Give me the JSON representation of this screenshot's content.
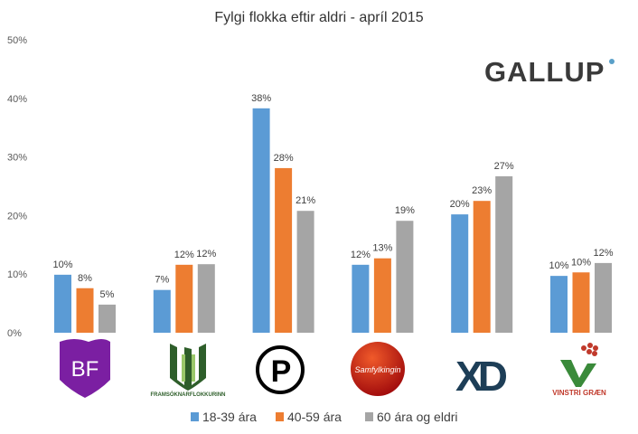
{
  "chart_data": {
    "type": "bar",
    "title": "Fylgi flokka eftir aldri - apríl 2015",
    "brand": "GALLUP",
    "xlabel": "",
    "ylabel": "",
    "ylim": [
      0,
      50
    ],
    "yticks": [
      "0%",
      "10%",
      "20%",
      "30%",
      "40%",
      "50%"
    ],
    "grid": false,
    "legend_position": "bottom",
    "categories": [
      "BF",
      "Framsóknarflokkurinn",
      "Píratar",
      "Samfylkingin",
      "XD",
      "Vinstri græn"
    ],
    "category_logo_text": [
      "BF",
      "FRAMSÓKNARFLOKKURINN",
      "P",
      "Samfylkingin",
      "XD",
      "VINSTRI GRÆN"
    ],
    "series": [
      {
        "name": "18-39 ára",
        "color": "#5b9bd5",
        "values": [
          9.9,
          7.3,
          38.3,
          11.6,
          20.2,
          9.7
        ],
        "labels": [
          "10%",
          "7%",
          "38%",
          "12%",
          "20%",
          "10%"
        ]
      },
      {
        "name": "40-59 ára",
        "color": "#ed7d31",
        "values": [
          7.6,
          11.6,
          28.1,
          12.7,
          22.5,
          10.3
        ],
        "labels": [
          "8%",
          "12%",
          "28%",
          "13%",
          "23%",
          "10%"
        ]
      },
      {
        "name": "60 ára og eldri",
        "color": "#a5a5a5",
        "values": [
          4.8,
          11.7,
          20.8,
          19.1,
          26.7,
          11.9
        ],
        "labels": [
          "5%",
          "12%",
          "21%",
          "19%",
          "27%",
          "12%"
        ]
      }
    ]
  }
}
